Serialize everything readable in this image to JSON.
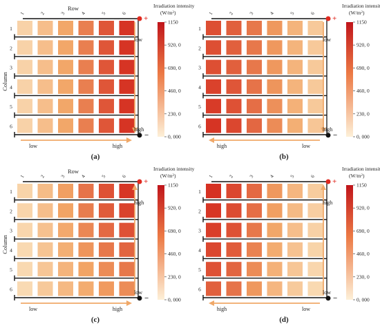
{
  "colors": {
    "low": "#fbe6c4",
    "mid": "#f2a465",
    "high": "#d42a1e",
    "wire": "#111111",
    "arrow": "#f0a868",
    "positive": "#e02a20",
    "negative": "#111111"
  },
  "colorbar": {
    "title": "Irradiation intensity",
    "unit_base": "(W/m",
    "unit_sup": "2",
    "unit_close": ")",
    "ticks": [
      "1150",
      "920, 0",
      "690, 0",
      "460, 0",
      "230, 0",
      "0, 000"
    ],
    "max": 1150,
    "min": 0
  },
  "symbols": {
    "plus": "+",
    "minus": "−"
  },
  "panels": [
    {
      "label": "(a)",
      "row_title": "Row",
      "column_title": "Column",
      "col_numbers": [
        "1",
        "2",
        "3",
        "4",
        "5",
        "6"
      ],
      "row_numbers": [
        "1",
        "2",
        "3",
        "4",
        "5",
        "6"
      ],
      "vertical_arrow": {
        "top_text": "low",
        "bottom_text": "high"
      },
      "horizontal_arrow": {
        "left_text": "low",
        "right_text": "high"
      },
      "cells": [
        [
          0.15,
          0.3,
          0.48,
          0.65,
          0.82,
          0.96
        ],
        [
          0.15,
          0.3,
          0.48,
          0.65,
          0.82,
          0.96
        ],
        [
          0.15,
          0.3,
          0.48,
          0.65,
          0.82,
          0.96
        ],
        [
          0.15,
          0.3,
          0.48,
          0.65,
          0.82,
          0.96
        ],
        [
          0.15,
          0.3,
          0.48,
          0.65,
          0.82,
          0.96
        ],
        [
          0.15,
          0.3,
          0.48,
          0.65,
          0.82,
          0.96
        ]
      ]
    },
    {
      "label": "(b)",
      "row_title": "",
      "column_title": "",
      "col_numbers": [
        "1",
        "2",
        "3",
        "4",
        "5",
        "6"
      ],
      "row_numbers": [
        "1",
        "2",
        "3",
        "4",
        "5",
        "6"
      ],
      "vertical_arrow": {
        "top_text": "low",
        "bottom_text": "high"
      },
      "horizontal_arrow": {
        "left_text": "high",
        "right_text": "low"
      },
      "cells": [
        [
          0.85,
          0.78,
          0.68,
          0.55,
          0.38,
          0.22
        ],
        [
          0.85,
          0.78,
          0.68,
          0.55,
          0.38,
          0.22
        ],
        [
          0.85,
          0.78,
          0.68,
          0.55,
          0.38,
          0.22
        ],
        [
          0.9,
          0.82,
          0.7,
          0.56,
          0.38,
          0.22
        ],
        [
          0.93,
          0.84,
          0.72,
          0.58,
          0.4,
          0.22
        ],
        [
          0.96,
          0.88,
          0.75,
          0.6,
          0.42,
          0.24
        ]
      ]
    },
    {
      "label": "(c)",
      "row_title": "Row",
      "column_title": "Column",
      "col_numbers": [
        "1",
        "2",
        "3",
        "4",
        "5",
        "6"
      ],
      "row_numbers": [
        "1",
        "2",
        "3",
        "4",
        "5",
        "6"
      ],
      "vertical_arrow": {
        "top_text": "high",
        "bottom_text": "low"
      },
      "horizontal_arrow": {
        "left_text": "low",
        "right_text": "high"
      },
      "cells": [
        [
          0.14,
          0.32,
          0.52,
          0.7,
          0.84,
          0.95
        ],
        [
          0.13,
          0.3,
          0.5,
          0.66,
          0.8,
          0.9
        ],
        [
          0.12,
          0.28,
          0.46,
          0.62,
          0.74,
          0.84
        ],
        [
          0.1,
          0.26,
          0.42,
          0.56,
          0.68,
          0.76
        ],
        [
          0.1,
          0.24,
          0.38,
          0.5,
          0.6,
          0.68
        ],
        [
          0.09,
          0.22,
          0.34,
          0.44,
          0.54,
          0.6
        ]
      ]
    },
    {
      "label": "(d)",
      "row_title": "",
      "column_title": "",
      "col_numbers": [
        "1",
        "2",
        "3",
        "4",
        "5",
        "6"
      ],
      "row_numbers": [
        "1",
        "2",
        "3",
        "4",
        "5",
        "6"
      ],
      "vertical_arrow": {
        "top_text": "high",
        "bottom_text": "low"
      },
      "horizontal_arrow": {
        "left_text": "high",
        "right_text": "low"
      },
      "cells": [
        [
          0.97,
          0.88,
          0.74,
          0.55,
          0.36,
          0.2
        ],
        [
          0.95,
          0.86,
          0.72,
          0.52,
          0.33,
          0.18
        ],
        [
          0.92,
          0.84,
          0.68,
          0.48,
          0.3,
          0.16
        ],
        [
          0.88,
          0.8,
          0.64,
          0.44,
          0.27,
          0.14
        ],
        [
          0.84,
          0.76,
          0.6,
          0.4,
          0.24,
          0.12
        ],
        [
          0.78,
          0.7,
          0.55,
          0.36,
          0.21,
          0.1
        ]
      ]
    }
  ]
}
